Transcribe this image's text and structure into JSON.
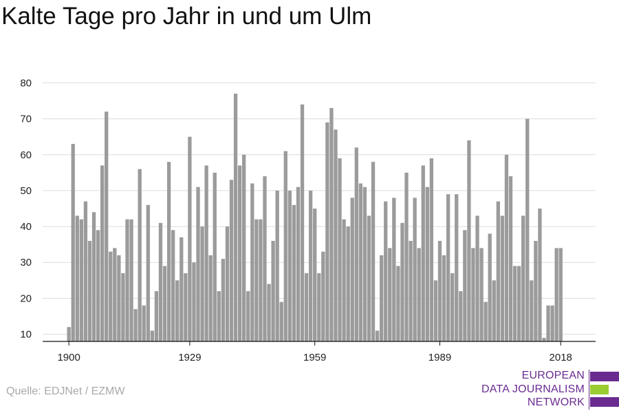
{
  "title": "Kalte Tage pro Jahr in und um Ulm",
  "source": "Quelle: EDJNet / EZMW",
  "logo": {
    "lines": [
      "EUROPEAN",
      "DATA JOURNALISM",
      "NETWORK"
    ],
    "colors": {
      "purple": "#6a2b91",
      "green": "#9acd32"
    }
  },
  "colors": {
    "bar": "#9b9b9b",
    "grid": "#dcdcdc",
    "axis": "#111111"
  },
  "chart_data": {
    "type": "bar",
    "title": "Kalte Tage pro Jahr in und um Ulm",
    "xlabel": "",
    "ylabel": "",
    "x_ticks": [
      1900,
      1929,
      1959,
      1989,
      2018
    ],
    "y_ticks": [
      10,
      20,
      30,
      40,
      50,
      60,
      70,
      80
    ],
    "ylim": [
      8,
      82
    ],
    "grid": true,
    "categories": [
      1900,
      1901,
      1902,
      1903,
      1904,
      1905,
      1906,
      1907,
      1908,
      1909,
      1910,
      1911,
      1912,
      1913,
      1914,
      1915,
      1916,
      1917,
      1918,
      1919,
      1920,
      1921,
      1922,
      1923,
      1924,
      1925,
      1926,
      1927,
      1928,
      1929,
      1930,
      1931,
      1932,
      1933,
      1934,
      1935,
      1936,
      1937,
      1938,
      1939,
      1940,
      1941,
      1942,
      1943,
      1944,
      1945,
      1946,
      1947,
      1948,
      1949,
      1950,
      1951,
      1952,
      1953,
      1954,
      1955,
      1956,
      1957,
      1958,
      1959,
      1960,
      1961,
      1962,
      1963,
      1964,
      1965,
      1966,
      1967,
      1968,
      1969,
      1970,
      1971,
      1972,
      1973,
      1974,
      1975,
      1976,
      1977,
      1978,
      1979,
      1980,
      1981,
      1982,
      1983,
      1984,
      1985,
      1986,
      1987,
      1988,
      1989,
      1990,
      1991,
      1992,
      1993,
      1994,
      1995,
      1996,
      1997,
      1998,
      1999,
      2000,
      2001,
      2002,
      2003,
      2004,
      2005,
      2006,
      2007,
      2008,
      2009,
      2010,
      2011,
      2012,
      2013,
      2014,
      2015,
      2016,
      2017,
      2018
    ],
    "values": [
      12,
      63,
      43,
      42,
      47,
      36,
      44,
      39,
      57,
      72,
      33,
      34,
      32,
      27,
      42,
      42,
      17,
      56,
      18,
      46,
      11,
      22,
      41,
      29,
      58,
      39,
      25,
      37,
      27,
      65,
      30,
      51,
      40,
      57,
      32,
      55,
      22,
      31,
      40,
      53,
      77,
      57,
      60,
      22,
      52,
      42,
      42,
      54,
      24,
      36,
      50,
      19,
      61,
      50,
      46,
      51,
      74,
      27,
      50,
      45,
      27,
      33,
      69,
      73,
      67,
      59,
      42,
      40,
      48,
      62,
      52,
      51,
      43,
      58,
      11,
      32,
      47,
      34,
      48,
      29,
      41,
      55,
      36,
      48,
      34,
      57,
      51,
      59,
      25,
      36,
      32,
      49,
      27,
      49,
      22,
      39,
      64,
      34,
      43,
      34,
      19,
      38,
      25,
      47,
      43,
      60,
      54,
      29,
      29,
      43,
      70,
      25,
      36,
      45,
      9,
      18,
      18,
      34,
      34
    ]
  }
}
